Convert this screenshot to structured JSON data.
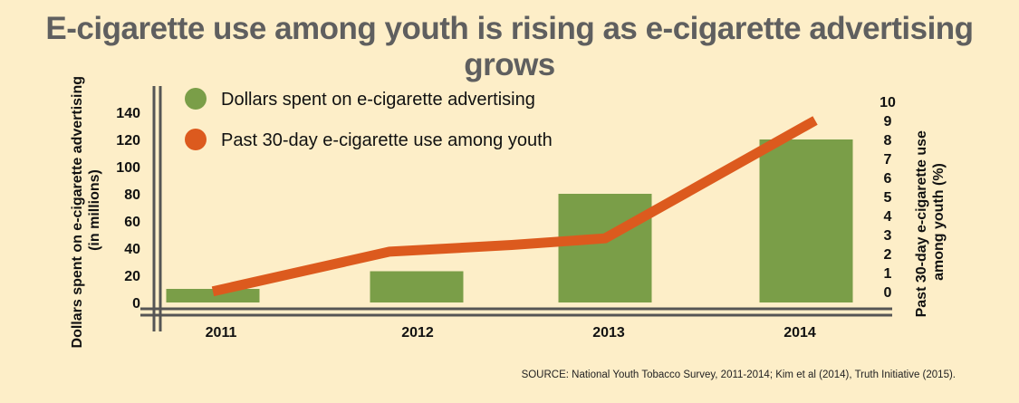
{
  "title": "E-cigarette use among youth is rising as e-cigarette advertising grows",
  "source": "SOURCE: National Youth Tobacco Survey, 2011-2014; Kim et al (2014), Truth Initiative (2015).",
  "colors": {
    "background": "#fdeec8",
    "bars": "#7a9e48",
    "line": "#dc5a1e",
    "axis": "#555555",
    "title": "#5f5f5f"
  },
  "chart_data": {
    "type": "bar",
    "categories": [
      "2011",
      "2012",
      "2013",
      "2014"
    ],
    "legend_placement": "top-left",
    "grid": false,
    "series": [
      {
        "name": "Dollars spent on e-cigarette advertising",
        "type": "bar",
        "axis": "left",
        "values": [
          10,
          23,
          80,
          120
        ]
      },
      {
        "name": "Past 30-day e-cigarette use among youth",
        "type": "line",
        "axis": "right",
        "values": [
          0.3,
          2.1,
          2.8,
          9.0
        ]
      }
    ],
    "y_left": {
      "label_line1": "Dollars spent on e-cigarette advertising",
      "label_line2": "(in millions)",
      "ylim": [
        0,
        140
      ],
      "ticks": [
        "0",
        "20",
        "40",
        "60",
        "80",
        "100",
        "120",
        "140"
      ]
    },
    "y_right": {
      "label_line1": "Past 30-day e-cigarette use",
      "label_line2": "among youth (%)",
      "ylim": [
        0,
        10
      ],
      "ticks": [
        "0",
        "1",
        "2",
        "3",
        "4",
        "5",
        "6",
        "7",
        "8",
        "9",
        "10"
      ]
    }
  }
}
